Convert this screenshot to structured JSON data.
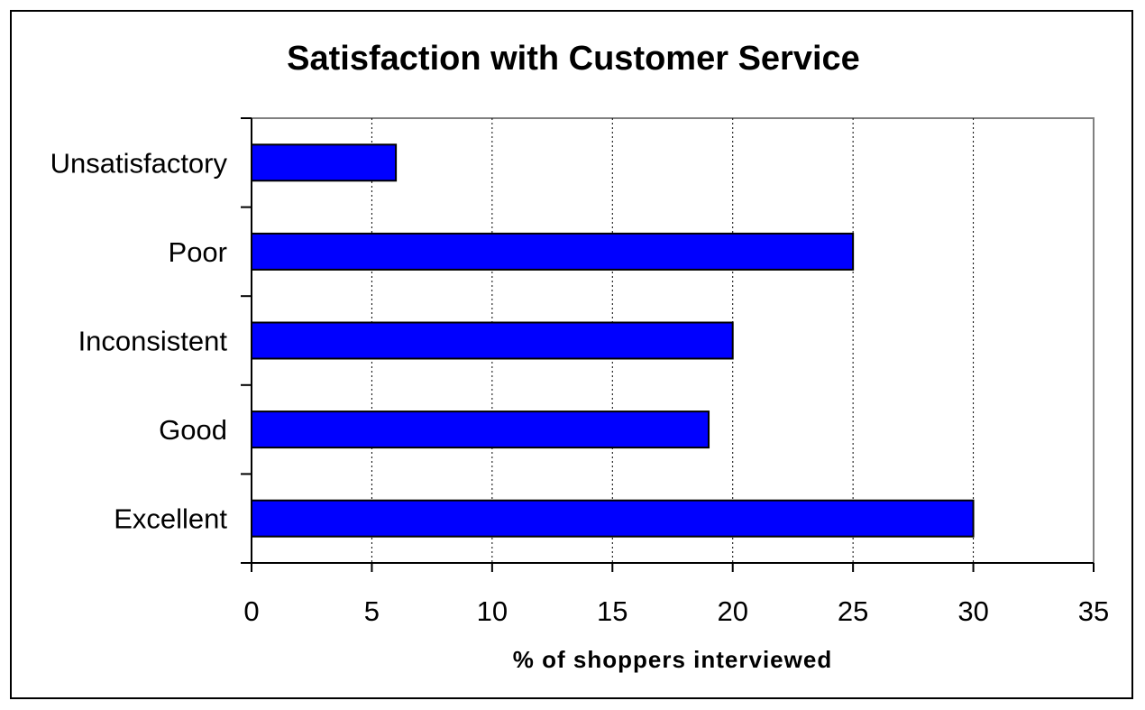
{
  "chart_data": {
    "type": "bar",
    "orientation": "horizontal",
    "title": "Satisfaction with Customer Service",
    "xlabel": "% of shoppers interviewed",
    "ylabel": "",
    "categories": [
      "Unsatisfactory",
      "Poor",
      "Inconsistent",
      "Good",
      "Excellent"
    ],
    "values": [
      6,
      25,
      20,
      19,
      30
    ],
    "xlim": [
      0,
      35
    ],
    "ticks": [
      "0",
      "5",
      "10",
      "15",
      "20",
      "25",
      "30",
      "35"
    ],
    "grid": "vertical dotted",
    "legend": "none",
    "bar_color": "#0000FF",
    "bar_edge_color": "#000000"
  }
}
